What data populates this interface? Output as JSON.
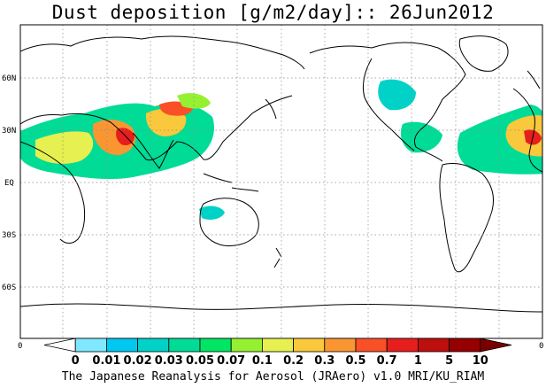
{
  "title": "Dust deposition [g/m2/day]:: 26Jun2012",
  "footer": "The Japanese Reanalysis for Aerosol (JRAero) v1.0 MRI/KU_RIAM",
  "map": {
    "lat_labels": [
      "60N",
      "30N",
      "EQ",
      "30S",
      "60S"
    ],
    "lon_labels": [
      "0",
      "0"
    ]
  },
  "colorbar": {
    "labels": [
      "0",
      "0.01",
      "0.02",
      "0.03",
      "0.05",
      "0.07",
      "0.1",
      "0.2",
      "0.3",
      "0.5",
      "0.7",
      "1",
      "5",
      "10"
    ],
    "colors": [
      "#ffffff",
      "#7fe8ff",
      "#00c8f0",
      "#00d2c8",
      "#00dc96",
      "#00e664",
      "#96f032",
      "#e6f050",
      "#fac83c",
      "#fa9632",
      "#fa5028",
      "#e61e1e",
      "#be0f0f",
      "#960000",
      "#7a0000"
    ]
  }
}
